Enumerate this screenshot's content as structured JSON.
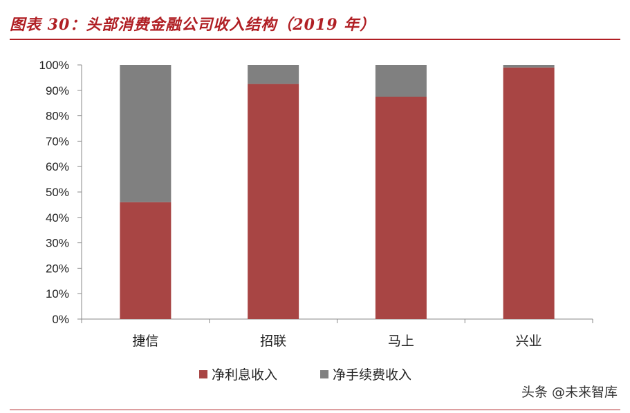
{
  "figure": {
    "title": "图表 30：头部消费金融公司收入结构（2019 年）",
    "watermark": "头条 @未来智库"
  },
  "colors": {
    "title": "#b01f24",
    "rule": "#b01f24",
    "series_1": "#a84544",
    "series_2": "#808080"
  },
  "chart_data": {
    "type": "bar",
    "stacked": true,
    "categories": [
      "捷信",
      "招联",
      "马上",
      "兴业"
    ],
    "series": [
      {
        "name": "净利息收入",
        "values": [
          46,
          92.5,
          87.5,
          99
        ]
      },
      {
        "name": "净手续费收入",
        "values": [
          54,
          7.5,
          12.5,
          1
        ]
      }
    ],
    "yticks": [
      "0%",
      "10%",
      "20%",
      "30%",
      "40%",
      "50%",
      "60%",
      "70%",
      "80%",
      "90%",
      "100%"
    ],
    "ylim": [
      0,
      100
    ],
    "grid": false,
    "legend": "bottom"
  }
}
